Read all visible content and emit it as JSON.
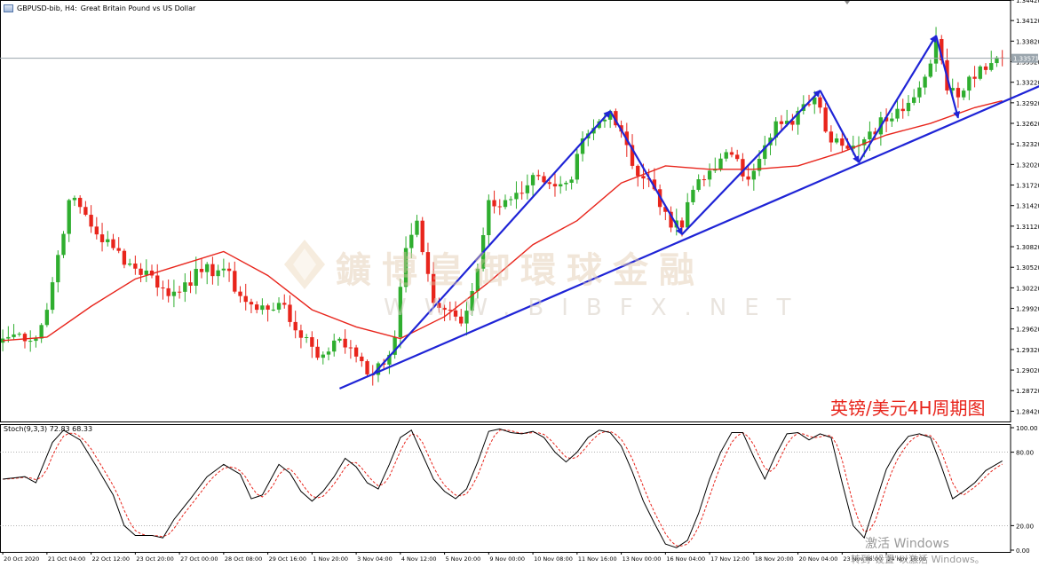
{
  "header": {
    "symbol": "GBPUSD-bib, H4:",
    "description": "Great Britain Pound vs US Dollar"
  },
  "caption": "英镑/美元4H周期图",
  "watermark": {
    "brand": "鑛博皇御環球金融",
    "url": "WWW.BIBFX.NET"
  },
  "os_notice": {
    "title": "激活 Windows",
    "subtitle": "转到\"设置\"以激活 Windows。"
  },
  "colors": {
    "bull": "#2fae2f",
    "bear": "#e8251c",
    "ma": "#e8251c",
    "trend": "#1f24d6",
    "stoch_main": "#000000",
    "stoch_signal": "#e8251c",
    "current_price_bg": "#9aa5ad"
  },
  "chart_data": {
    "type": "candlestick",
    "symbol": "GBPUSD",
    "timeframe": "H4",
    "y_ticks": [
      "1.34420",
      "1.34120",
      "1.33820",
      "1.33520",
      "1.33220",
      "1.32920",
      "1.32620",
      "1.32320",
      "1.32020",
      "1.31720",
      "1.31420",
      "1.31120",
      "1.30820",
      "1.30520",
      "1.30220",
      "1.29920",
      "1.29620",
      "1.29320",
      "1.29020",
      "1.28720",
      "1.28420"
    ],
    "ylim": [
      1.2827,
      1.3442
    ],
    "current_price": "1.33571",
    "current_price_value": 1.3357,
    "x_ticks": [
      "20 Oct 2020",
      "21 Oct 04:00",
      "22 Oct 12:00",
      "23 Oct 20:00",
      "27 Oct 00:00",
      "28 Oct 08:00",
      "29 Oct 16:00",
      "1 Nov 20:00",
      "3 Nov 04:00",
      "4 Nov 12:00",
      "5 Nov 20:00",
      "9 Nov 00:00",
      "10 Nov 08:00",
      "11 Nov 16:00",
      "13 Nov 00:00",
      "16 Nov 04:00",
      "17 Nov 12:00",
      "18 Nov 20:00",
      "20 Nov 04:00",
      "23 Nov 08:00",
      "24 Nov 16:00"
    ],
    "bars_per_tick": 8,
    "close_anchors": [
      [
        0,
        1.2948
      ],
      [
        3,
        1.2955
      ],
      [
        6,
        1.2948
      ],
      [
        8,
        1.299
      ],
      [
        10,
        1.307
      ],
      [
        12,
        1.315
      ],
      [
        14,
        1.314
      ],
      [
        17,
        1.31
      ],
      [
        20,
        1.308
      ],
      [
        24,
        1.305
      ],
      [
        27,
        1.304
      ],
      [
        30,
        1.301
      ],
      [
        33,
        1.303
      ],
      [
        36,
        1.3045
      ],
      [
        40,
        1.305
      ],
      [
        43,
        1.301
      ],
      [
        46,
        1.299
      ],
      [
        50,
        1.3
      ],
      [
        53,
        1.296
      ],
      [
        55,
        1.295
      ],
      [
        57,
        1.292
      ],
      [
        60,
        1.2945
      ],
      [
        63,
        1.2935
      ],
      [
        65,
        1.2915
      ],
      [
        67,
        1.2895
      ],
      [
        69,
        1.291
      ],
      [
        71,
        1.295
      ],
      [
        73,
        1.308
      ],
      [
        75,
        1.312
      ],
      [
        78,
        1.3
      ],
      [
        80,
        1.299
      ],
      [
        83,
        1.297
      ],
      [
        86,
        1.305
      ],
      [
        88,
        1.315
      ],
      [
        91,
        1.315
      ],
      [
        94,
        1.316
      ],
      [
        97,
        1.3185
      ],
      [
        100,
        1.317
      ],
      [
        103,
        1.318
      ],
      [
        105,
        1.324
      ],
      [
        108,
        1.3265
      ],
      [
        110,
        1.328
      ],
      [
        112,
        1.325
      ],
      [
        114,
        1.32
      ],
      [
        117,
        1.318
      ],
      [
        119,
        1.314
      ],
      [
        121,
        1.311
      ],
      [
        123,
        1.311
      ],
      [
        125,
        1.3165
      ],
      [
        127,
        1.318
      ],
      [
        129,
        1.3195
      ],
      [
        131,
        1.322
      ],
      [
        133,
        1.321
      ],
      [
        135,
        1.318
      ],
      [
        138,
        1.323
      ],
      [
        140,
        1.3265
      ],
      [
        143,
        1.326
      ],
      [
        145,
        1.329
      ],
      [
        147,
        1.33
      ],
      [
        149,
        1.325
      ],
      [
        151,
        1.324
      ],
      [
        153,
        1.3225
      ],
      [
        155,
        1.323
      ],
      [
        157,
        1.325
      ],
      [
        160,
        1.3265
      ],
      [
        163,
        1.328
      ],
      [
        165,
        1.33
      ],
      [
        167,
        1.333
      ],
      [
        169,
        1.3385
      ],
      [
        171,
        1.331
      ],
      [
        173,
        1.33
      ],
      [
        175,
        1.333
      ],
      [
        177,
        1.3345
      ],
      [
        179,
        1.335
      ],
      [
        181,
        1.3357
      ]
    ],
    "moving_average": [
      [
        0,
        1.2945
      ],
      [
        8,
        1.295
      ],
      [
        16,
        1.2995
      ],
      [
        24,
        1.3035
      ],
      [
        32,
        1.3055
      ],
      [
        40,
        1.3075
      ],
      [
        48,
        1.304
      ],
      [
        56,
        1.299
      ],
      [
        64,
        1.2965
      ],
      [
        72,
        1.2948
      ],
      [
        80,
        1.298
      ],
      [
        88,
        1.303
      ],
      [
        96,
        1.3085
      ],
      [
        104,
        1.312
      ],
      [
        112,
        1.3175
      ],
      [
        120,
        1.32
      ],
      [
        128,
        1.3195
      ],
      [
        136,
        1.3195
      ],
      [
        144,
        1.32
      ],
      [
        152,
        1.322
      ],
      [
        160,
        1.3245
      ],
      [
        168,
        1.3262
      ],
      [
        176,
        1.3285
      ],
      [
        181,
        1.3295
      ]
    ],
    "annotations": {
      "zigzag": [
        [
          67,
          1.2895
        ],
        [
          110,
          1.328
        ],
        [
          123,
          1.31
        ],
        [
          148,
          1.331
        ],
        [
          155,
          1.3205
        ],
        [
          169,
          1.339
        ],
        [
          173,
          1.327
        ]
      ],
      "trendline": [
        [
          61,
          1.2875
        ],
        [
          206,
          1.338
        ]
      ],
      "trendline_arrow": true
    },
    "stochastic": {
      "label": "Stoch(9,3,3) 72.83 68.33",
      "params": [
        9,
        3,
        3
      ],
      "main": 72.83,
      "signal": 68.33,
      "levels": [
        "100.00",
        "80.00",
        "20.00",
        "0.00"
      ],
      "level_values": [
        100,
        80,
        20,
        0
      ],
      "anchors": [
        [
          0,
          58
        ],
        [
          4,
          60
        ],
        [
          6,
          55
        ],
        [
          9,
          88
        ],
        [
          11,
          98
        ],
        [
          14,
          90
        ],
        [
          17,
          68
        ],
        [
          20,
          45
        ],
        [
          22,
          20
        ],
        [
          24,
          12
        ],
        [
          27,
          12
        ],
        [
          29,
          10
        ],
        [
          31,
          25
        ],
        [
          34,
          42
        ],
        [
          37,
          60
        ],
        [
          40,
          70
        ],
        [
          43,
          62
        ],
        [
          45,
          42
        ],
        [
          47,
          45
        ],
        [
          50,
          70
        ],
        [
          52,
          63
        ],
        [
          54,
          48
        ],
        [
          56,
          40
        ],
        [
          58,
          48
        ],
        [
          60,
          60
        ],
        [
          62,
          75
        ],
        [
          64,
          68
        ],
        [
          66,
          55
        ],
        [
          68,
          50
        ],
        [
          70,
          70
        ],
        [
          72,
          92
        ],
        [
          74,
          98
        ],
        [
          76,
          78
        ],
        [
          78,
          58
        ],
        [
          80,
          48
        ],
        [
          82,
          42
        ],
        [
          84,
          50
        ],
        [
          86,
          72
        ],
        [
          88,
          97
        ],
        [
          90,
          99
        ],
        [
          92,
          96
        ],
        [
          94,
          95
        ],
        [
          96,
          97
        ],
        [
          98,
          92
        ],
        [
          100,
          80
        ],
        [
          102,
          72
        ],
        [
          104,
          80
        ],
        [
          106,
          92
        ],
        [
          108,
          98
        ],
        [
          110,
          96
        ],
        [
          112,
          85
        ],
        [
          114,
          64
        ],
        [
          116,
          40
        ],
        [
          118,
          22
        ],
        [
          120,
          5
        ],
        [
          122,
          2
        ],
        [
          124,
          8
        ],
        [
          126,
          30
        ],
        [
          128,
          58
        ],
        [
          130,
          80
        ],
        [
          132,
          96
        ],
        [
          134,
          96
        ],
        [
          136,
          76
        ],
        [
          138,
          58
        ],
        [
          140,
          78
        ],
        [
          142,
          95
        ],
        [
          144,
          96
        ],
        [
          146,
          90
        ],
        [
          148,
          95
        ],
        [
          150,
          92
        ],
        [
          152,
          55
        ],
        [
          154,
          20
        ],
        [
          156,
          10
        ],
        [
          158,
          38
        ],
        [
          160,
          66
        ],
        [
          162,
          82
        ],
        [
          164,
          93
        ],
        [
          166,
          95
        ],
        [
          168,
          92
        ],
        [
          170,
          68
        ],
        [
          172,
          42
        ],
        [
          174,
          48
        ],
        [
          176,
          55
        ],
        [
          178,
          65
        ],
        [
          181,
          72.83
        ]
      ]
    }
  }
}
